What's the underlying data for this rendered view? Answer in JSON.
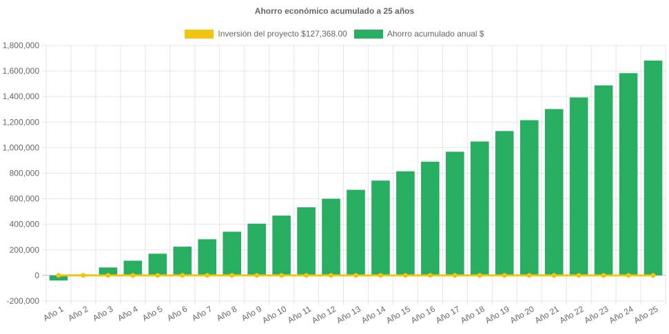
{
  "chart_data": {
    "type": "bar",
    "title": "Ahorro económico acumulado a 25 años",
    "categories": [
      "Año 1",
      "Año 2",
      "Año 3",
      "Año 4",
      "Año 5",
      "Año 6",
      "Año 7",
      "Año 8",
      "Año 9",
      "Año 10",
      "Año 11",
      "Año 12",
      "Año 13",
      "Año 14",
      "Año 15",
      "Año 16",
      "Año 17",
      "Año 18",
      "Año 19",
      "Año 20",
      "Año 21",
      "Año 22",
      "Año 23",
      "Año 24",
      "Año 25"
    ],
    "series": [
      {
        "name": "Inversión del proyecto $127,368.00",
        "type": "line",
        "color": "#f1c40f",
        "values": [
          0,
          0,
          0,
          0,
          0,
          0,
          0,
          0,
          0,
          0,
          0,
          0,
          0,
          0,
          0,
          0,
          0,
          0,
          0,
          0,
          0,
          0,
          0,
          0,
          0
        ]
      },
      {
        "name": "Ahorro acumulado anual $",
        "type": "bar",
        "color": "#27ae60",
        "values": [
          -40000,
          8000,
          62000,
          115000,
          170000,
          225000,
          283000,
          342000,
          405000,
          468000,
          533000,
          600000,
          670000,
          742000,
          815000,
          890000,
          968000,
          1048000,
          1130000,
          1215000,
          1302000,
          1393000,
          1487000,
          1583000,
          1682000
        ]
      }
    ],
    "ylim": [
      -200000,
      1800000
    ],
    "yticks": [
      -200000,
      0,
      200000,
      400000,
      600000,
      800000,
      1000000,
      1200000,
      1400000,
      1600000,
      1800000
    ],
    "ytick_labels": [
      "-200,000",
      "0",
      "200,000",
      "400,000",
      "600,000",
      "800,000",
      "1,000,000",
      "1,200,000",
      "1,400,000",
      "1,600,000",
      "1,800,000"
    ],
    "grid": true,
    "legend_position": "top"
  }
}
